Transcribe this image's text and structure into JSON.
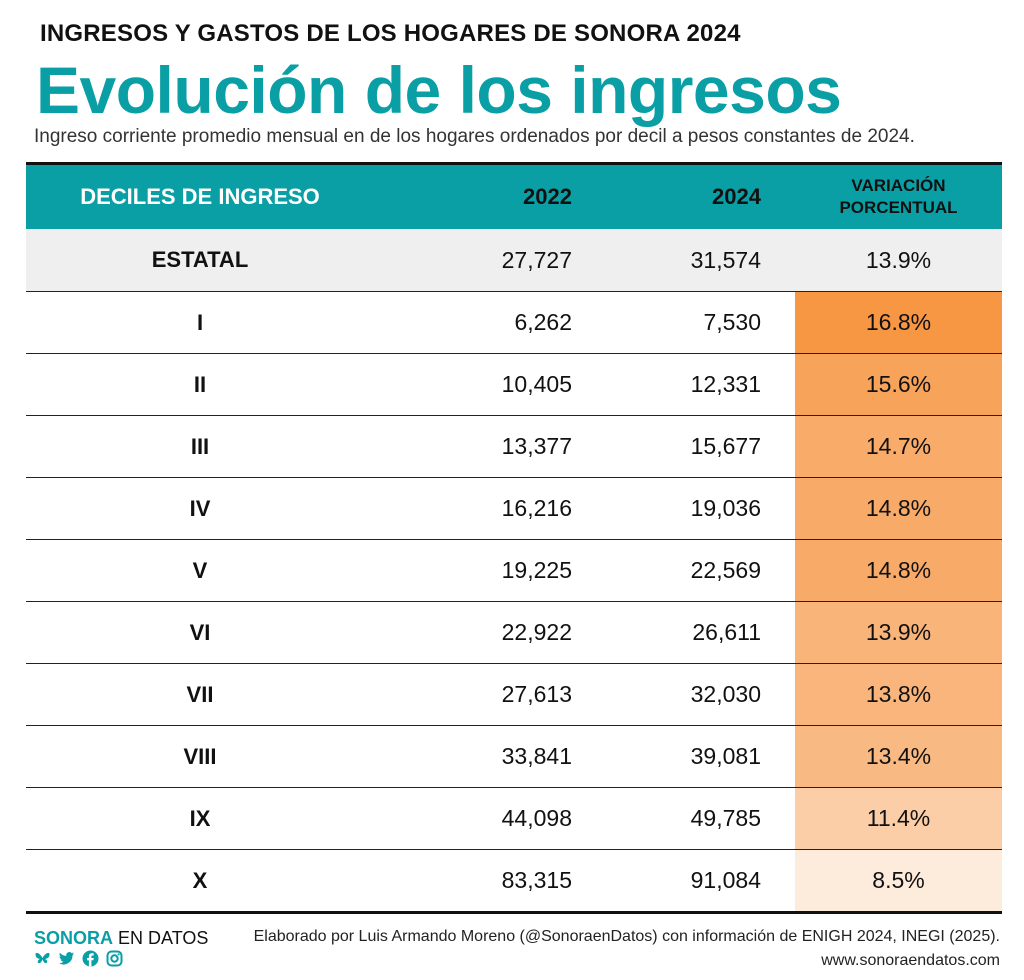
{
  "header": {
    "kicker": "INGRESOS Y GASTOS DE LOS HOGARES DE SONORA 2024",
    "title": "Evolución de los ingresos",
    "subtitle": "Ingreso corriente promedio mensual en de los hogares ordenados por decil a pesos constantes de 2024."
  },
  "chart_data": {
    "type": "table",
    "columns": [
      "DECILES DE INGRESO",
      "2022",
      "2024",
      "VARIACIÓN PORCENTUAL"
    ],
    "column_lines": [
      "VARIACIÓN",
      "PORCENTUAL"
    ],
    "rows": [
      {
        "label": "ESTATAL",
        "v2022": "27,727",
        "v2024": "31,574",
        "variation": "13.9%",
        "variation_value": 13.9
      },
      {
        "label": "I",
        "v2022": "6,262",
        "v2024": "7,530",
        "variation": "16.8%",
        "variation_value": 16.8
      },
      {
        "label": "II",
        "v2022": "10,405",
        "v2024": "12,331",
        "variation": "15.6%",
        "variation_value": 15.6
      },
      {
        "label": "III",
        "v2022": "13,377",
        "v2024": "15,677",
        "variation": "14.7%",
        "variation_value": 14.7
      },
      {
        "label": "IV",
        "v2022": "16,216",
        "v2024": "19,036",
        "variation": "14.8%",
        "variation_value": 14.8
      },
      {
        "label": "V",
        "v2022": "19,225",
        "v2024": "22,569",
        "variation": "14.8%",
        "variation_value": 14.8
      },
      {
        "label": "VI",
        "v2022": "22,922",
        "v2024": "26,611",
        "variation": "13.9%",
        "variation_value": 13.9
      },
      {
        "label": "VII",
        "v2022": "27,613",
        "v2024": "32,030",
        "variation": "13.8%",
        "variation_value": 13.8
      },
      {
        "label": "VIII",
        "v2022": "33,841",
        "v2024": "39,081",
        "variation": "13.4%",
        "variation_value": 13.4
      },
      {
        "label": "IX",
        "v2022": "44,098",
        "v2024": "49,785",
        "variation": "11.4%",
        "variation_value": 11.4
      },
      {
        "label": "X",
        "v2022": "83,315",
        "v2024": "91,084",
        "variation": "8.5%",
        "variation_value": 8.5
      }
    ],
    "heat_colors": {
      "high": "#f79744",
      "low": "#fdebdc"
    },
    "header_color": "#0a9ea5",
    "state_row_color": "#efefef"
  },
  "footer": {
    "brand_strong": "SONORA",
    "brand_rest": " EN DATOS",
    "credit": "Elaborado por Luis Armando Moreno (@SonoraenDatos) con información de ENIGH 2024, INEGI (2025).",
    "site": "www.sonoraendatos.com",
    "social_icons": [
      "butterfly-icon",
      "twitter-icon",
      "facebook-icon",
      "instagram-icon"
    ]
  }
}
